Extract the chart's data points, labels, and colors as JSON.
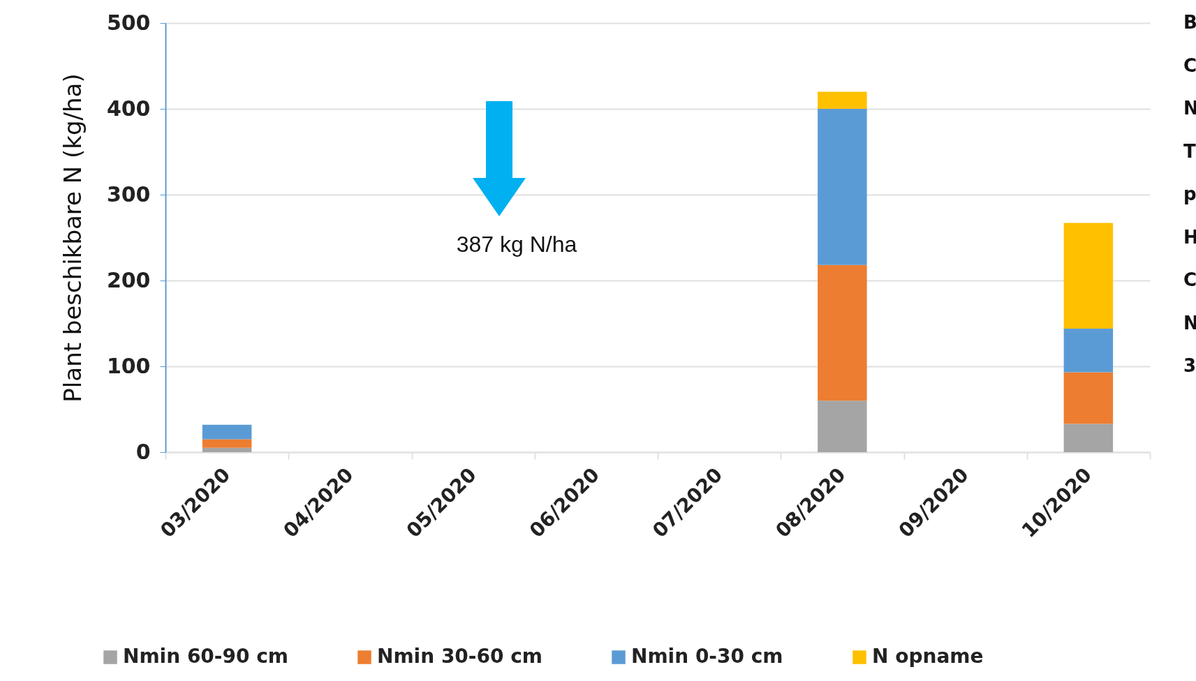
{
  "chart_data": {
    "type": "bar",
    "stacked": true,
    "ylabel": "Plant beschikbare N (kg/ha)",
    "categories": [
      "03/2020",
      "04/2020",
      "05/2020",
      "06/2020",
      "07/2020",
      "08/2020",
      "09/2020",
      "10/2020"
    ],
    "series": [
      {
        "name": "Nmin 60-90 cm",
        "color": "#a5a5a5",
        "values": [
          5,
          null,
          null,
          null,
          null,
          60,
          null,
          33
        ]
      },
      {
        "name": "Nmin 30-60 cm",
        "color": "#ed7d31",
        "values": [
          10,
          null,
          null,
          null,
          null,
          158,
          null,
          60
        ]
      },
      {
        "name": "Nmin 0-30 cm",
        "color": "#5b9bd5",
        "values": [
          17,
          null,
          null,
          null,
          null,
          182,
          null,
          51
        ]
      },
      {
        "name": "N opname",
        "color": "#ffc000",
        "values": [
          null,
          null,
          null,
          null,
          null,
          20,
          null,
          123
        ]
      }
    ],
    "ylim": [
      0,
      500
    ],
    "yticks": [
      0,
      100,
      200,
      300,
      400,
      500
    ],
    "grid": "y",
    "legend": "bottom",
    "annotations": [
      "387 kg N/ha",
      "B",
      "C",
      "N",
      "T",
      "p",
      "H",
      "C",
      "N",
      "3"
    ]
  }
}
